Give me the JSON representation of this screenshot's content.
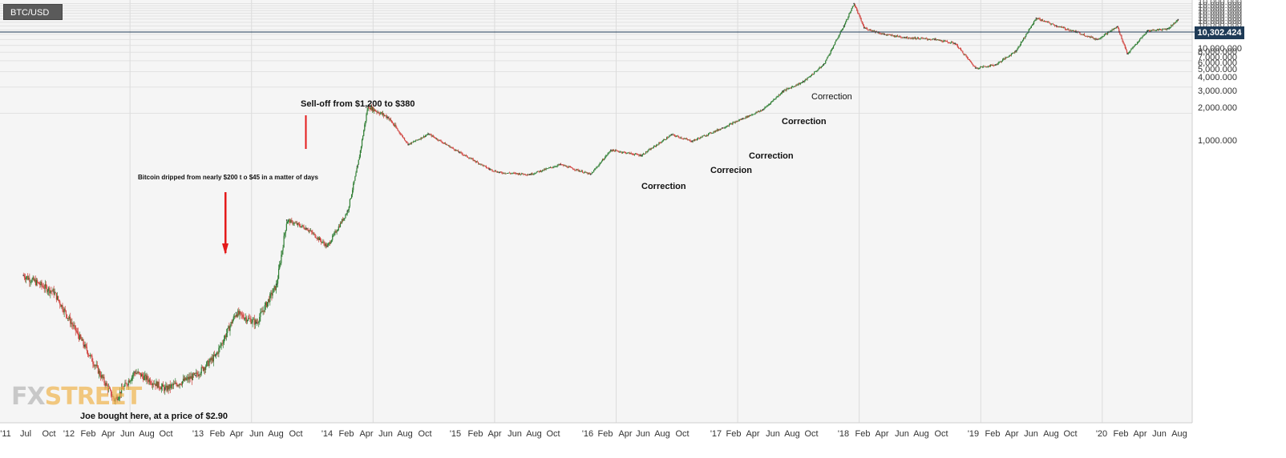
{
  "symbol": "BTC/USD",
  "current_price_label": "10,302.424",
  "watermark": {
    "fx": "FX",
    "street": "STREET"
  },
  "colors": {
    "up": "#2e7d32",
    "down": "#d0413c",
    "price_line": "#1f3b57",
    "grid": "#e2e2e2",
    "background": "#f5f5f5",
    "red_arrow": "#e41a1a"
  },
  "chart_data": {
    "type": "line",
    "style": "candlestick",
    "scale": "log",
    "title": "",
    "xlabel": "",
    "ylabel": "",
    "grid": true,
    "ylim": [
      300,
      19000000
    ],
    "x_tick_labels": [
      "'11",
      "Jul",
      "Oct",
      "'12",
      "Feb",
      "Apr",
      "Jun",
      "Aug",
      "Oct",
      "'13",
      "Feb",
      "Apr",
      "Jun",
      "Aug",
      "Oct",
      "'14",
      "Feb",
      "Apr",
      "Jun",
      "Aug",
      "Oct",
      "'15",
      "Feb",
      "Apr",
      "Jun",
      "Aug",
      "Oct",
      "'16",
      "Feb",
      "Apr",
      "Jun",
      "Aug",
      "Oct",
      "'17",
      "Feb",
      "Apr",
      "Jun",
      "Aug",
      "Oct",
      "'18",
      "Feb",
      "Apr",
      "Jun",
      "Aug",
      "Oct",
      "'19",
      "Feb",
      "Apr",
      "Jun",
      "Aug",
      "Oct",
      "'20",
      "Feb",
      "Apr",
      "Jun",
      "Aug"
    ],
    "y_tick_labels": [
      "10,000.000",
      "8,000.000",
      "7,000.000",
      "6,000.000",
      "5,000.000",
      "4,000.000",
      "3,000.000",
      "2,000.000",
      "1,000.000"
    ],
    "series": [
      {
        "x": [
          "2011-02",
          "2011-05",
          "2011-08",
          "2011-11",
          "2012-01",
          "2012-04",
          "2012-07",
          "2012-09",
          "2012-11",
          "2013-01",
          "2013-03",
          "2013-04",
          "2013-06",
          "2013-08",
          "2013-10",
          "2013-11",
          "2013-12",
          "2014-02",
          "2014-04",
          "2014-06",
          "2014-09",
          "2014-12",
          "2015-01",
          "2015-04",
          "2015-07",
          "2015-10",
          "2015-12",
          "2016-03",
          "2016-06",
          "2016-08",
          "2016-11",
          "2017-01",
          "2017-03",
          "2017-05",
          "2017-07",
          "2017-09",
          "2017-11",
          "2017-12",
          "2018-01",
          "2018-03",
          "2018-05",
          "2018-08",
          "2018-10",
          "2018-12",
          "2019-02",
          "2019-04",
          "2019-06",
          "2019-08",
          "2019-10",
          "2019-12",
          "2020-02",
          "2020-03",
          "2020-05",
          "2020-07",
          "2020-08"
        ],
        "values": [
          14000,
          9000,
          2200,
          520,
          1100,
          700,
          1000,
          1700,
          5200,
          4000,
          11000,
          60000,
          48000,
          30000,
          76000,
          250000,
          1200000,
          900000,
          440000,
          580000,
          360000,
          230000,
          210000,
          200000,
          260000,
          200000,
          380000,
          330000,
          570000,
          480000,
          680000,
          870000,
          1100000,
          1800000,
          2300000,
          3600000,
          10000000,
          18000000,
          9500000,
          8000000,
          7400000,
          7000000,
          6300000,
          3300000,
          3600000,
          5200000,
          12300000,
          10000000,
          8500000,
          7000000,
          9800000,
          4800000,
          8800000,
          9300000,
          11800000
        ]
      }
    ],
    "annotations": [
      {
        "text": "Sell-off from $1,200 to $380"
      },
      {
        "text": "Bitcoin dripped from nearly $200 t o $45 in a matter of days"
      },
      {
        "text": "Joe bought here, at a price of $2.90"
      },
      {
        "text": "Correction"
      },
      {
        "text": "Correcion"
      },
      {
        "text": "Correction"
      },
      {
        "text": "Correction"
      },
      {
        "text": "Correction"
      }
    ]
  }
}
